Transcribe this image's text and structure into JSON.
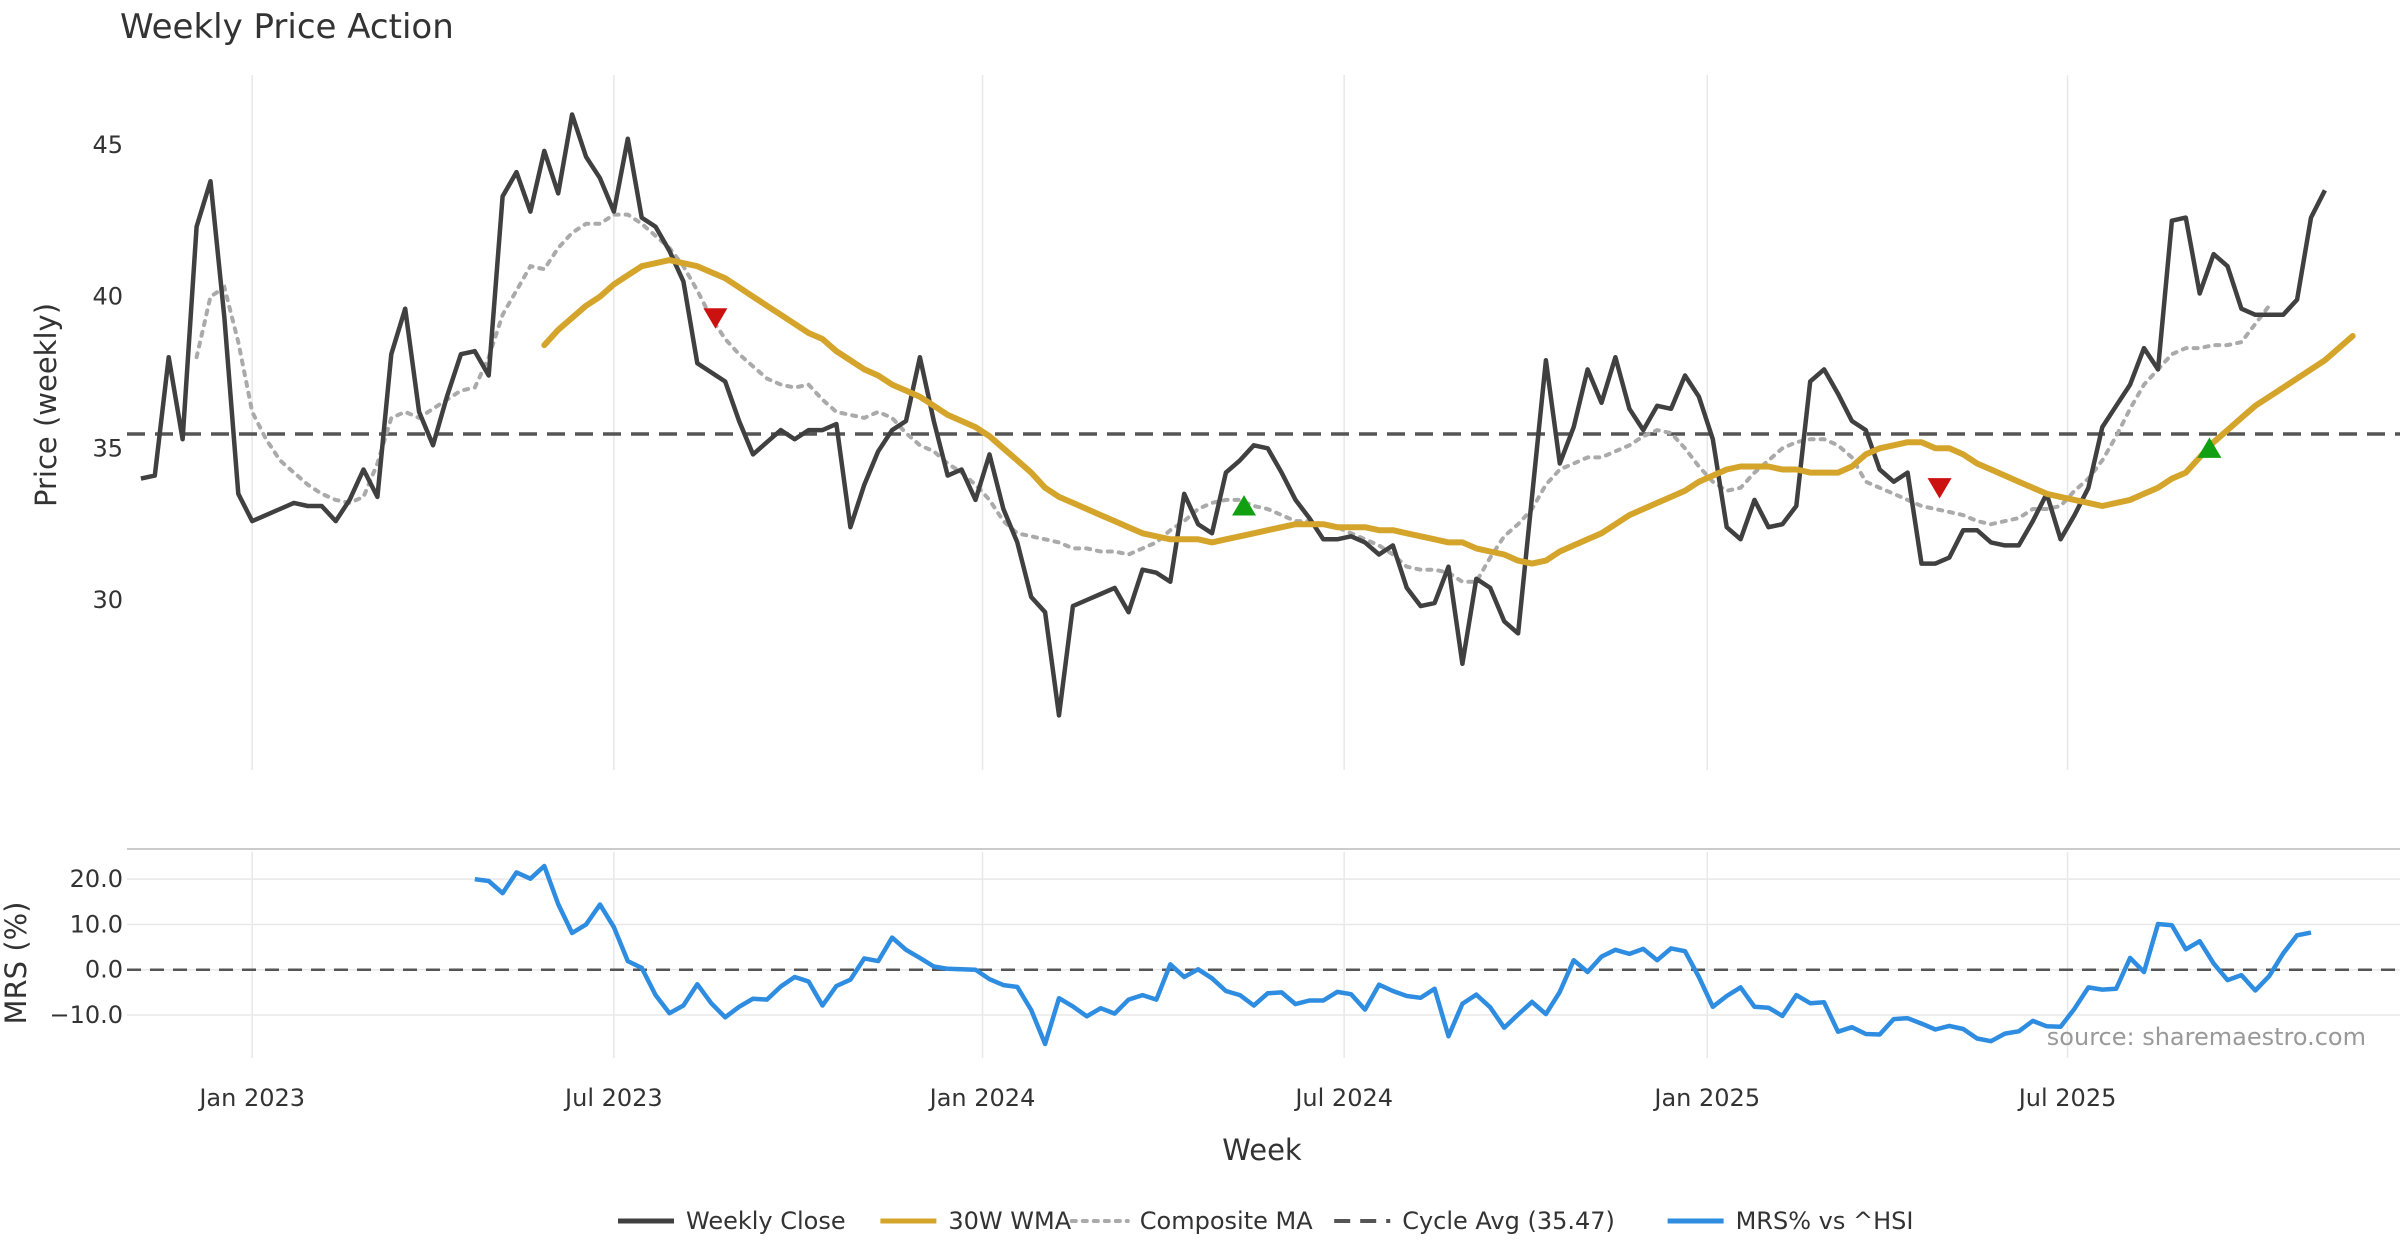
{
  "colors": {
    "weekly_close": "#404040",
    "wma": "#d4a52a",
    "composite": "#aaaaaa",
    "cycle": "#555555",
    "mrs": "#2e8de0",
    "down_marker": "#cc1111",
    "up_marker": "#11a011",
    "grid": "#e8e8e8"
  },
  "chart_data": [
    {
      "type": "line",
      "title": "Weekly Price Action",
      "ylabel": "Price (weekly)",
      "xlabel": "",
      "grid": true,
      "ylim": [
        24.4,
        47.3
      ],
      "yticks": [
        30,
        35,
        40,
        45
      ],
      "series": [
        {
          "name": "Weekly Close",
          "start_week": 0,
          "values": [
            34.0,
            34.1,
            38.0,
            35.3,
            42.3,
            43.8,
            39.3,
            33.5,
            32.6,
            32.8,
            33.0,
            33.2,
            33.1,
            33.1,
            32.6,
            33.3,
            34.3,
            33.4,
            38.1,
            39.6,
            36.2,
            35.1,
            36.7,
            38.1,
            38.2,
            37.4,
            43.3,
            44.1,
            42.8,
            44.8,
            43.4,
            46.0,
            44.6,
            43.9,
            42.8,
            45.2,
            42.6,
            42.3,
            41.5,
            40.5,
            37.8,
            37.5,
            37.2,
            35.9,
            34.8,
            35.2,
            35.6,
            35.3,
            35.6,
            35.6,
            35.8,
            32.4,
            33.8,
            34.9,
            35.6,
            35.9,
            38.0,
            35.9,
            34.1,
            34.3,
            33.3,
            34.8,
            33.0,
            31.9,
            30.1,
            29.6,
            26.2,
            29.8,
            30.0,
            30.2,
            30.4,
            29.6,
            31.0,
            30.9,
            30.6,
            33.5,
            32.5,
            32.2,
            34.2,
            34.6,
            35.1,
            35.0,
            34.2,
            33.3,
            32.7,
            32.0,
            32.0,
            32.1,
            31.9,
            31.5,
            31.8,
            30.4,
            29.8,
            29.9,
            31.1,
            27.9,
            30.7,
            30.4,
            29.3,
            28.9,
            33.4,
            37.9,
            34.5,
            35.7,
            37.6,
            36.5,
            38.0,
            36.3,
            35.6,
            36.4,
            36.3,
            37.4,
            36.7,
            35.3,
            32.4,
            32.0,
            33.3,
            32.4,
            32.5,
            33.1,
            37.2,
            37.6,
            36.8,
            35.9,
            35.6,
            34.3,
            33.9,
            34.2,
            31.2,
            31.2,
            31.4,
            32.3,
            32.3,
            31.9,
            31.8,
            31.8,
            32.6,
            33.5,
            32.0,
            32.8,
            33.7,
            35.7,
            36.4,
            37.1,
            38.3,
            37.6,
            42.5,
            42.6,
            40.1,
            41.4,
            41.0,
            39.6,
            39.4,
            39.4,
            39.4,
            39.9,
            42.6,
            43.5
          ]
        },
        {
          "name": "30W WMA",
          "start_week": 29,
          "values": [
            38.4,
            38.9,
            39.3,
            39.7,
            40.0,
            40.4,
            40.7,
            41.0,
            41.1,
            41.2,
            41.1,
            41.0,
            40.8,
            40.6,
            40.3,
            40.0,
            39.7,
            39.4,
            39.1,
            38.8,
            38.6,
            38.2,
            37.9,
            37.6,
            37.4,
            37.1,
            36.9,
            36.7,
            36.4,
            36.1,
            35.9,
            35.7,
            35.4,
            35.0,
            34.6,
            34.2,
            33.7,
            33.4,
            33.2,
            33.0,
            32.8,
            32.6,
            32.4,
            32.2,
            32.1,
            32.0,
            32.0,
            32.0,
            31.9,
            32.0,
            32.1,
            32.2,
            32.3,
            32.4,
            32.5,
            32.5,
            32.5,
            32.4,
            32.4,
            32.4,
            32.3,
            32.3,
            32.2,
            32.1,
            32.0,
            31.9,
            31.9,
            31.7,
            31.6,
            31.5,
            31.3,
            31.2,
            31.3,
            31.6,
            31.8,
            32.0,
            32.2,
            32.5,
            32.8,
            33.0,
            33.2,
            33.4,
            33.6,
            33.9,
            34.1,
            34.3,
            34.4,
            34.4,
            34.4,
            34.3,
            34.3,
            34.2,
            34.2,
            34.2,
            34.4,
            34.8,
            35.0,
            35.1,
            35.2,
            35.2,
            35.0,
            35.0,
            34.8,
            34.5,
            34.3,
            34.1,
            33.9,
            33.7,
            33.5,
            33.4,
            33.3,
            33.2,
            33.1,
            33.2,
            33.3,
            33.5,
            33.7,
            34.0,
            34.2,
            34.7,
            35.2,
            35.6,
            36.0,
            36.4,
            36.7,
            37.0,
            37.3,
            37.6,
            37.9,
            38.3,
            38.7
          ]
        },
        {
          "name": "Composite MA",
          "start_week": 4,
          "values": [
            38.0,
            40.0,
            40.3,
            38.5,
            36.2,
            35.3,
            34.6,
            34.2,
            33.8,
            33.5,
            33.3,
            33.2,
            33.4,
            34.5,
            36.0,
            36.2,
            36.0,
            36.3,
            36.6,
            36.9,
            37.0,
            38.0,
            39.4,
            40.2,
            41.0,
            40.9,
            41.6,
            42.1,
            42.4,
            42.4,
            42.7,
            42.7,
            42.4,
            42.0,
            41.6,
            41.0,
            40.2,
            39.3,
            38.6,
            38.1,
            37.7,
            37.3,
            37.1,
            37.0,
            37.1,
            36.6,
            36.2,
            36.1,
            36.0,
            36.2,
            36.0,
            35.5,
            35.1,
            34.9,
            34.5,
            34.2,
            33.8,
            33.3,
            32.6,
            32.2,
            32.1,
            32.0,
            31.9,
            31.7,
            31.7,
            31.6,
            31.6,
            31.5,
            31.7,
            31.9,
            32.3,
            32.6,
            33.0,
            33.2,
            33.3,
            33.3,
            33.1,
            33.0,
            32.8,
            32.6,
            32.6,
            32.5,
            32.4,
            32.2,
            32.0,
            31.8,
            31.5,
            31.1,
            31.0,
            31.0,
            30.9,
            30.6,
            30.6,
            31.4,
            32.1,
            32.5,
            33.0,
            33.8,
            34.3,
            34.5,
            34.7,
            34.7,
            34.9,
            35.1,
            35.4,
            35.6,
            35.5,
            35.0,
            34.4,
            33.9,
            33.6,
            33.7,
            34.2,
            34.6,
            35.0,
            35.2,
            35.3,
            35.3,
            35.1,
            34.7,
            33.9,
            33.7,
            33.5,
            33.3,
            33.1,
            33.0,
            32.9,
            32.8,
            32.6,
            32.5,
            32.6,
            32.7,
            33.0,
            33.0,
            33.1,
            33.6,
            34.0,
            34.6,
            35.4,
            36.3,
            37.1,
            37.6,
            38.1,
            38.3,
            38.3,
            38.4,
            38.4,
            38.5,
            39.1,
            39.7
          ]
        }
      ],
      "reference_line": {
        "name": "Cycle Avg (35.47)",
        "value": 35.47
      },
      "markers": [
        {
          "kind": "sell",
          "shape": "down-triangle",
          "week": 41.3,
          "value": 39.3
        },
        {
          "kind": "buy",
          "shape": "up-triangle",
          "week": 79.3,
          "value": 33.1
        },
        {
          "kind": "sell",
          "shape": "down-triangle",
          "week": 129.3,
          "value": 33.7
        },
        {
          "kind": "buy",
          "shape": "up-triangle",
          "week": 148.7,
          "value": 35.0
        }
      ]
    },
    {
      "type": "line",
      "ylabel": "MRS (%)",
      "xlabel": "Week",
      "grid": true,
      "ylim": [
        -19.5,
        26.0
      ],
      "yticks": [
        20.0,
        10.0,
        0.0,
        -10.0
      ],
      "ytick_labels": [
        "20.0",
        "10.0",
        "0.0",
        "−10.0"
      ],
      "series": [
        {
          "name": "MRS% vs ^HSI",
          "start_week": 24,
          "values": [
            20.0,
            19.6,
            16.9,
            21.5,
            20.1,
            22.9,
            14.5,
            8.1,
            10.0,
            14.4,
            9.4,
            1.9,
            0.4,
            -5.6,
            -9.6,
            -7.9,
            -3.2,
            -7.4,
            -10.5,
            -8.2,
            -6.4,
            -6.6,
            -3.7,
            -1.6,
            -2.6,
            -7.9,
            -3.6,
            -2.2,
            2.5,
            1.9,
            7.1,
            4.4,
            2.6,
            0.7,
            0.2,
            0.1,
            0.0,
            -2.1,
            -3.4,
            -3.8,
            -8.9,
            -16.4,
            -6.3,
            -8.1,
            -10.3,
            -8.5,
            -9.7,
            -6.6,
            -5.6,
            -6.6,
            1.2,
            -1.6,
            0.1,
            -1.9,
            -4.7,
            -5.6,
            -7.9,
            -5.2,
            -5.0,
            -7.6,
            -6.8,
            -6.8,
            -4.9,
            -5.4,
            -8.8,
            -3.3,
            -4.7,
            -5.8,
            -6.2,
            -4.2,
            -14.7,
            -7.5,
            -5.5,
            -8.3,
            -12.8,
            -9.9,
            -7.1,
            -9.8,
            -4.9,
            2.1,
            -0.5,
            2.9,
            4.4,
            3.5,
            4.6,
            2.1,
            4.7,
            4.1,
            -1.6,
            -8.2,
            -5.8,
            -3.9,
            -8.2,
            -8.4,
            -10.2,
            -5.6,
            -7.4,
            -7.2,
            -13.7,
            -12.7,
            -14.2,
            -14.3,
            -10.9,
            -10.7,
            -11.9,
            -13.2,
            -12.4,
            -13.1,
            -15.2,
            -15.8,
            -14.1,
            -13.6,
            -11.3,
            -12.5,
            -12.6,
            -8.6,
            -3.9,
            -4.4,
            -4.2,
            2.6,
            -0.5,
            10.1,
            9.8,
            4.5,
            6.3,
            1.4,
            -2.3,
            -1.2,
            -4.6,
            -1.4,
            3.6,
            7.6,
            8.2
          ]
        }
      ],
      "reference_line": {
        "value": 0.0
      }
    }
  ],
  "x_axis": {
    "tick_labels": [
      "Jan 2023",
      "Jul 2023",
      "Jan 2024",
      "Jul 2024",
      "Jan 2025",
      "Jul 2025"
    ],
    "tick_weeks": [
      8,
      34,
      60.5,
      86.5,
      112.6,
      138.5
    ]
  },
  "title": "Weekly Price Action",
  "source_note": "source: sharemaestro.com",
  "legend": {
    "position": "bottom-center",
    "entries": [
      {
        "label": "Weekly Close",
        "style": "solid",
        "color": "#404040"
      },
      {
        "label": "30W WMA",
        "style": "solid",
        "color": "#d4a52a"
      },
      {
        "label": "Composite MA",
        "style": "dotted",
        "color": "#aaaaaa"
      },
      {
        "label": "Cycle Avg (35.47)",
        "style": "dashed",
        "color": "#555555"
      },
      {
        "label": "MRS% vs ^HSI",
        "style": "solid",
        "color": "#2e8de0"
      }
    ]
  }
}
